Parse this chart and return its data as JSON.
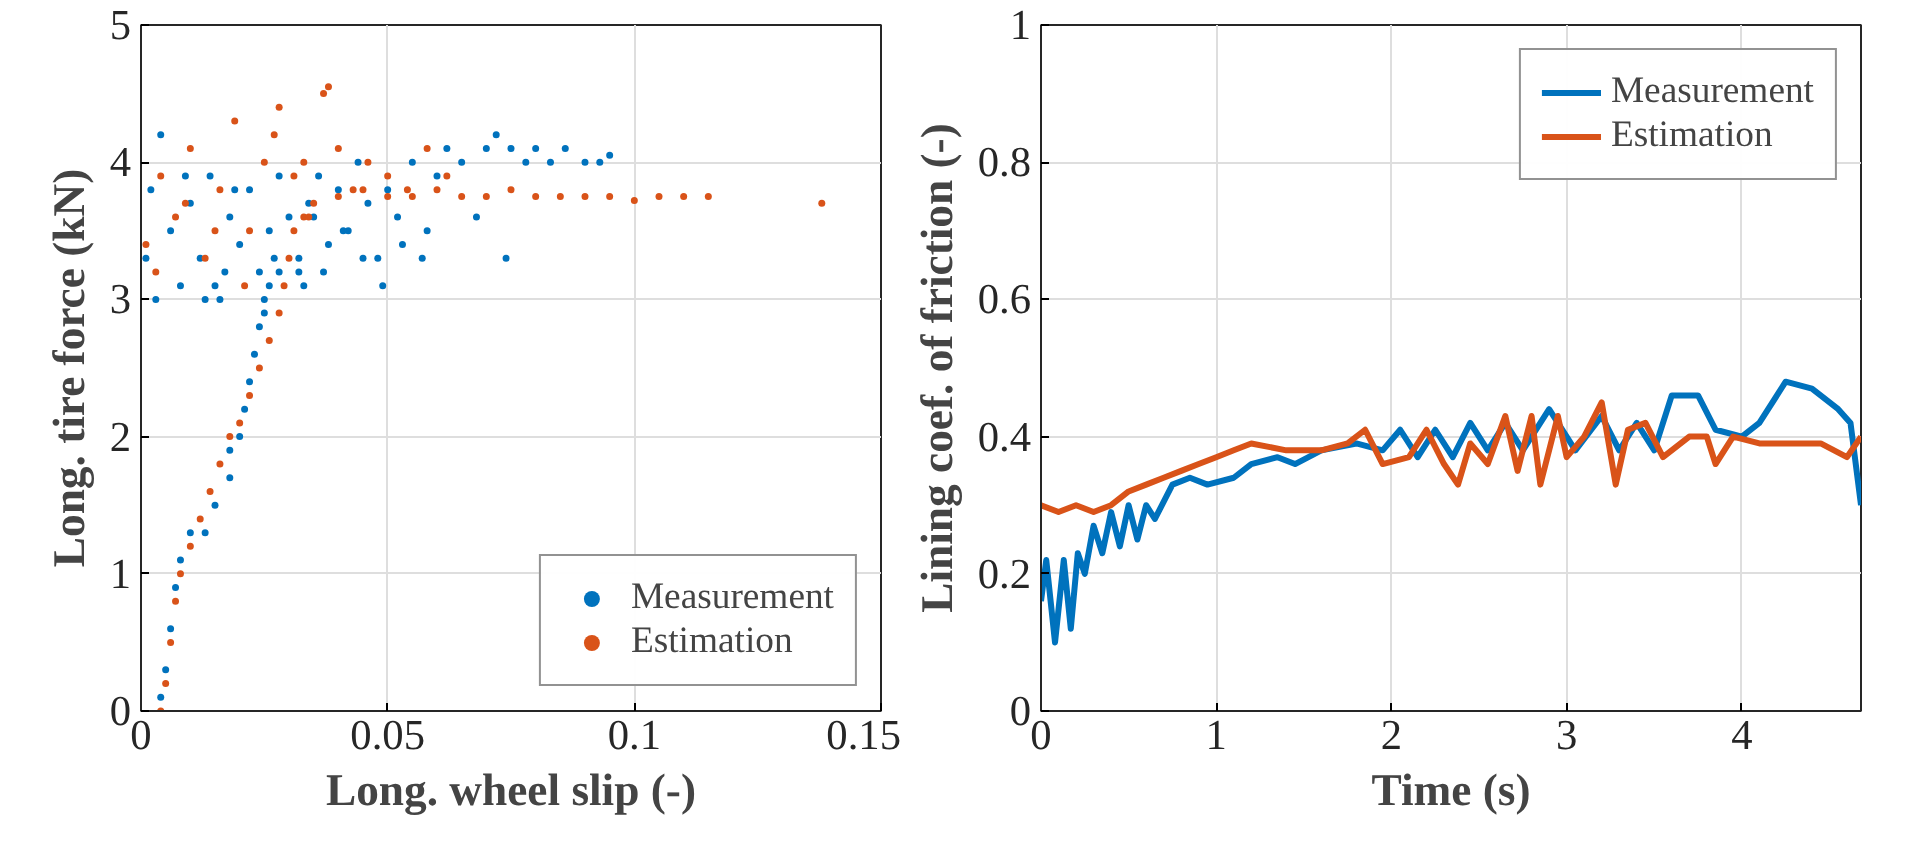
{
  "chart_data": [
    {
      "type": "scatter",
      "xlabel": "Long. wheel slip (-)",
      "ylabel": "Long. tire force (kN)",
      "xlim": [
        0,
        0.15
      ],
      "ylim": [
        0,
        5
      ],
      "xticks": [
        0,
        0.05,
        0.1,
        0.15
      ],
      "yticks": [
        0,
        1,
        2,
        3,
        4,
        5
      ],
      "grid": true,
      "legend": "bottom right",
      "marker": "circle",
      "series": [
        {
          "name": "Measurement",
          "color": "#0072bd",
          "x": [
            0.004,
            0.005,
            0.006,
            0.007,
            0.008,
            0.01,
            0.013,
            0.015,
            0.018,
            0.018,
            0.02,
            0.021,
            0.022,
            0.023,
            0.024,
            0.025,
            0.026,
            0.028,
            0.032,
            0.002,
            0.004,
            0.006,
            0.008,
            0.01,
            0.012,
            0.014,
            0.016,
            0.018,
            0.02,
            0.022,
            0.024,
            0.026,
            0.028,
            0.03,
            0.032,
            0.034,
            0.036,
            0.038,
            0.04,
            0.042,
            0.044,
            0.046,
            0.048,
            0.05,
            0.052,
            0.055,
            0.058,
            0.06,
            0.062,
            0.065,
            0.068,
            0.07,
            0.072,
            0.075,
            0.078,
            0.08,
            0.083,
            0.086,
            0.09,
            0.093,
            0.095,
            0.001,
            0.003,
            0.009,
            0.013,
            0.017,
            0.019,
            0.027,
            0.033,
            0.037,
            0.041,
            0.045,
            0.049,
            0.053,
            0.057,
            0.074,
            0.025,
            0.015,
            0.035
          ],
          "values": [
            0.1,
            0.3,
            0.6,
            0.9,
            1.1,
            1.3,
            1.3,
            1.5,
            1.7,
            1.9,
            2.0,
            2.2,
            2.4,
            2.6,
            2.8,
            3.0,
            3.1,
            3.2,
            3.2,
            3.8,
            4.2,
            3.5,
            3.1,
            3.7,
            3.3,
            3.9,
            3.0,
            3.6,
            3.4,
            3.8,
            3.2,
            3.5,
            3.9,
            3.6,
            3.3,
            3.7,
            3.9,
            3.4,
            3.8,
            3.5,
            4.0,
            3.7,
            3.3,
            3.8,
            3.6,
            4.0,
            3.5,
            3.9,
            4.1,
            4.0,
            3.6,
            4.1,
            4.2,
            4.1,
            4.0,
            4.1,
            4.0,
            4.1,
            4.0,
            4.0,
            4.05,
            3.3,
            3.0,
            3.9,
            3.0,
            3.2,
            3.8,
            3.3,
            3.1,
            3.2,
            3.5,
            3.3,
            3.1,
            3.4,
            3.3,
            3.3,
            2.9,
            3.1,
            3.6
          ]
        },
        {
          "name": "Estimation",
          "color": "#d95319",
          "x": [
            0.004,
            0.005,
            0.006,
            0.007,
            0.008,
            0.01,
            0.012,
            0.014,
            0.016,
            0.018,
            0.02,
            0.022,
            0.024,
            0.026,
            0.028,
            0.029,
            0.03,
            0.031,
            0.033,
            0.035,
            0.04,
            0.045,
            0.05,
            0.055,
            0.06,
            0.065,
            0.07,
            0.075,
            0.08,
            0.085,
            0.09,
            0.095,
            0.1,
            0.105,
            0.11,
            0.115,
            0.138,
            0.001,
            0.004,
            0.007,
            0.01,
            0.013,
            0.016,
            0.019,
            0.022,
            0.025,
            0.028,
            0.031,
            0.034,
            0.037,
            0.04,
            0.043,
            0.046,
            0.05,
            0.054,
            0.058,
            0.062,
            0.003,
            0.015,
            0.021,
            0.027,
            0.038,
            0.033,
            0.009
          ],
          "values": [
            0.0,
            0.2,
            0.5,
            0.8,
            1.0,
            1.2,
            1.4,
            1.6,
            1.8,
            2.0,
            2.1,
            2.3,
            2.5,
            2.7,
            2.9,
            3.1,
            3.3,
            3.5,
            3.6,
            3.7,
            3.75,
            3.8,
            3.75,
            3.75,
            3.8,
            3.75,
            3.75,
            3.8,
            3.75,
            3.75,
            3.75,
            3.75,
            3.72,
            3.75,
            3.75,
            3.75,
            3.7,
            3.4,
            3.9,
            3.6,
            4.1,
            3.3,
            3.8,
            4.3,
            3.5,
            4.0,
            4.4,
            3.9,
            3.6,
            4.5,
            4.1,
            3.8,
            4.0,
            3.9,
            3.8,
            4.1,
            3.9,
            3.2,
            3.5,
            3.1,
            4.2,
            4.55,
            4.0,
            3.7
          ]
        }
      ]
    },
    {
      "type": "line",
      "xlabel": "Time (s)",
      "ylabel": "Lining coef. of friction (-)",
      "xlim": [
        0,
        4.68
      ],
      "ylim": [
        0,
        1
      ],
      "xticks": [
        0,
        1,
        2,
        3,
        4
      ],
      "yticks": [
        0,
        0.2,
        0.4,
        0.6,
        0.8,
        1
      ],
      "grid": true,
      "legend": "top right",
      "line_style": "solid",
      "series": [
        {
          "name": "Measurement",
          "color": "#0072bd",
          "x": [
            0,
            0.03,
            0.08,
            0.13,
            0.17,
            0.21,
            0.25,
            0.3,
            0.35,
            0.4,
            0.45,
            0.5,
            0.55,
            0.6,
            0.65,
            0.75,
            0.85,
            0.95,
            1.1,
            1.2,
            1.35,
            1.45,
            1.6,
            1.8,
            1.95,
            2.05,
            2.15,
            2.25,
            2.35,
            2.45,
            2.55,
            2.65,
            2.75,
            2.9,
            3.05,
            3.2,
            3.3,
            3.4,
            3.5,
            3.6,
            3.75,
            3.85,
            4.0,
            4.1,
            4.25,
            4.4,
            4.55,
            4.62,
            4.68
          ],
          "values": [
            0.16,
            0.22,
            0.1,
            0.22,
            0.12,
            0.23,
            0.2,
            0.27,
            0.23,
            0.29,
            0.24,
            0.3,
            0.25,
            0.3,
            0.28,
            0.33,
            0.34,
            0.33,
            0.34,
            0.36,
            0.37,
            0.36,
            0.38,
            0.39,
            0.38,
            0.41,
            0.37,
            0.41,
            0.37,
            0.42,
            0.38,
            0.42,
            0.38,
            0.44,
            0.38,
            0.43,
            0.38,
            0.42,
            0.38,
            0.46,
            0.46,
            0.41,
            0.4,
            0.42,
            0.48,
            0.47,
            0.44,
            0.42,
            0.3
          ]
        },
        {
          "name": "Estimation",
          "color": "#d95319",
          "x": [
            0,
            0.1,
            0.2,
            0.3,
            0.4,
            0.5,
            0.6,
            0.7,
            0.8,
            0.9,
            1.0,
            1.1,
            1.2,
            1.4,
            1.6,
            1.75,
            1.85,
            1.95,
            2.1,
            2.2,
            2.3,
            2.38,
            2.45,
            2.55,
            2.65,
            2.72,
            2.8,
            2.85,
            2.95,
            3.0,
            3.1,
            3.2,
            3.28,
            3.35,
            3.45,
            3.55,
            3.7,
            3.8,
            3.85,
            3.95,
            4.1,
            4.3,
            4.45,
            4.6,
            4.68
          ],
          "values": [
            0.3,
            0.29,
            0.3,
            0.29,
            0.3,
            0.32,
            0.33,
            0.34,
            0.35,
            0.36,
            0.37,
            0.38,
            0.39,
            0.38,
            0.38,
            0.39,
            0.41,
            0.36,
            0.37,
            0.41,
            0.36,
            0.33,
            0.39,
            0.36,
            0.43,
            0.35,
            0.43,
            0.33,
            0.43,
            0.37,
            0.4,
            0.45,
            0.33,
            0.41,
            0.42,
            0.37,
            0.4,
            0.4,
            0.36,
            0.4,
            0.39,
            0.39,
            0.39,
            0.37,
            0.4
          ]
        }
      ]
    }
  ]
}
